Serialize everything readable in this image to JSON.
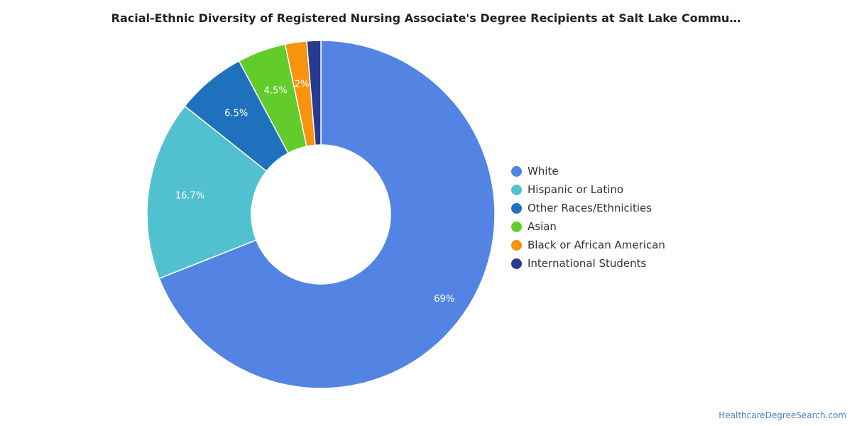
{
  "chart_data": {
    "type": "pie",
    "title": "Racial-Ethnic Diversity of Registered Nursing Associate's Degree Recipients at Salt Lake Commu…",
    "donut": true,
    "categories": [
      "White",
      "Hispanic or Latino",
      "Other Races/Ethnicities",
      "Asian",
      "Black or African American",
      "International Students"
    ],
    "values": [
      69,
      16.7,
      6.5,
      4.5,
      2,
      1.3
    ],
    "data_labels": [
      "69%",
      "16.7%",
      "6.5%",
      "4.5%",
      "2%",
      ""
    ],
    "colors": [
      "#5384e3",
      "#52c1cf",
      "#1f71bd",
      "#62cc2a",
      "#f7930f",
      "#283a8c"
    ],
    "legend_position": "right"
  },
  "footer": {
    "source": "HealthcareDegreeSearch.com"
  }
}
